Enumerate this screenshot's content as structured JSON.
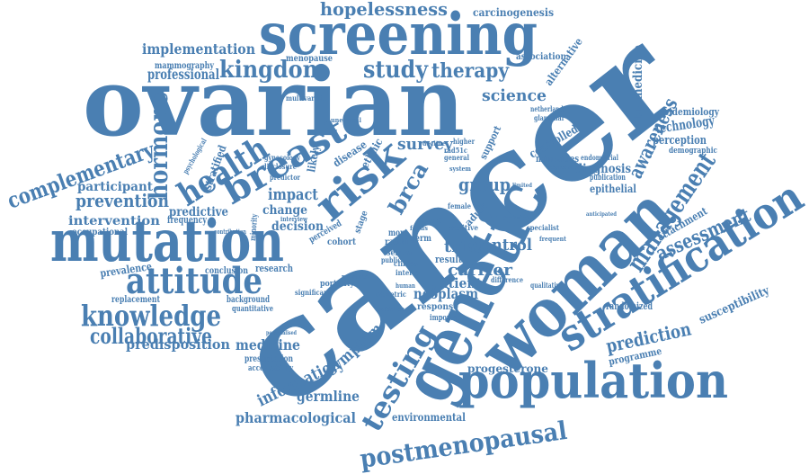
{
  "color": "#4a7fb2",
  "words": [
    {
      "name": "word-cancer",
      "text": "cancer"
    },
    {
      "name": "word-ovarian",
      "text": "ovarian"
    },
    {
      "name": "word-genetic",
      "text": "genetic"
    },
    {
      "name": "word-woman",
      "text": "woman"
    },
    {
      "name": "word-screening",
      "text": "screening"
    },
    {
      "name": "word-mutation",
      "text": "mutation"
    },
    {
      "name": "word-population",
      "text": "population"
    },
    {
      "name": "word-stratification",
      "text": "stratification"
    },
    {
      "name": "word-risk",
      "text": "risk"
    },
    {
      "name": "word-breast",
      "text": "breast"
    },
    {
      "name": "word-health",
      "text": "health"
    },
    {
      "name": "word-attitude",
      "text": "attitude"
    },
    {
      "name": "word-knowledge",
      "text": "knowledge"
    },
    {
      "name": "word-testing",
      "text": "testing"
    },
    {
      "name": "word-postmenopausal",
      "text": "postmenopausal"
    },
    {
      "name": "word-management",
      "text": "management"
    },
    {
      "name": "word-hormone",
      "text": "hormone"
    },
    {
      "name": "word-complementary",
      "text": "complementary"
    },
    {
      "name": "word-kingdom",
      "text": "kingdom"
    },
    {
      "name": "word-study",
      "text": "study"
    },
    {
      "name": "word-therapy",
      "text": "therapy"
    },
    {
      "name": "word-hopelessness",
      "text": "hopelessness"
    },
    {
      "name": "word-collaborative",
      "text": "collaborative"
    },
    {
      "name": "word-assessment",
      "text": "assessment"
    },
    {
      "name": "word-awareness",
      "text": "awareness"
    },
    {
      "name": "word-prediction",
      "text": "prediction"
    },
    {
      "name": "word-prevention",
      "text": "prevention"
    },
    {
      "name": "word-implementation",
      "text": "implementation"
    },
    {
      "name": "word-professional",
      "text": "professional"
    },
    {
      "name": "word-science",
      "text": "science"
    },
    {
      "name": "word-survey",
      "text": "survey"
    },
    {
      "name": "word-brca",
      "text": "brca"
    },
    {
      "name": "word-group",
      "text": "group"
    },
    {
      "name": "word-impact",
      "text": "impact"
    },
    {
      "name": "word-carrier",
      "text": "carrier"
    },
    {
      "name": "word-trial",
      "text": "trial"
    },
    {
      "name": "word-control",
      "text": "control"
    },
    {
      "name": "word-information",
      "text": "information"
    },
    {
      "name": "word-symptom",
      "text": "symptom"
    },
    {
      "name": "word-germline",
      "text": "germline"
    },
    {
      "name": "word-pharmacological",
      "text": "pharmacological"
    },
    {
      "name": "word-medicine",
      "text": "medicine"
    },
    {
      "name": "word-predisposition",
      "text": "predisposition"
    },
    {
      "name": "word-neoplasm",
      "text": "neoplasm"
    },
    {
      "name": "word-patient",
      "text": "patient"
    },
    {
      "name": "word-intervention",
      "text": "intervention"
    },
    {
      "name": "word-predictive",
      "text": "predictive"
    },
    {
      "name": "word-participant",
      "text": "participant"
    },
    {
      "name": "word-change",
      "text": "change"
    },
    {
      "name": "word-decision",
      "text": "decision"
    },
    {
      "name": "word-progesterone",
      "text": "progesterone"
    },
    {
      "name": "word-environmental",
      "text": "environmental"
    },
    {
      "name": "word-technology",
      "text": "technology"
    },
    {
      "name": "word-perception",
      "text": "perception"
    },
    {
      "name": "word-epidemiology",
      "text": "epidemiology"
    },
    {
      "name": "word-biomedicine",
      "text": "biomedicine"
    },
    {
      "name": "word-diagnosis",
      "text": "diagnosis"
    },
    {
      "name": "word-epithelial",
      "text": "epithelial"
    },
    {
      "name": "word-susceptibility",
      "text": "susceptibility"
    },
    {
      "name": "word-programme",
      "text": "programme"
    },
    {
      "name": "word-attachment",
      "text": "attachment"
    },
    {
      "name": "word-randomized",
      "text": "randomized"
    },
    {
      "name": "word-controlled",
      "text": "controlled"
    },
    {
      "name": "word-minorities",
      "text": "minorities"
    },
    {
      "name": "word-carcinogenesis",
      "text": "carcinogenesis"
    },
    {
      "name": "word-alternative",
      "text": "alternative"
    },
    {
      "name": "word-association",
      "text": "association"
    },
    {
      "name": "word-menopause",
      "text": "menopause"
    },
    {
      "name": "word-mammography",
      "text": "mammography"
    },
    {
      "name": "word-frequency",
      "text": "frequency"
    },
    {
      "name": "word-prevalence",
      "text": "prevalence"
    },
    {
      "name": "word-occupational",
      "text": "occupational"
    },
    {
      "name": "word-replacement",
      "text": "replacement"
    },
    {
      "name": "word-research",
      "text": "research"
    },
    {
      "name": "word-conclusion",
      "text": "conclusion"
    },
    {
      "name": "word-background",
      "text": "background"
    },
    {
      "name": "word-quantitative",
      "text": "quantitative"
    },
    {
      "name": "word-presentation",
      "text": "presentation"
    },
    {
      "name": "word-acceptability",
      "text": "acceptability"
    },
    {
      "name": "word-stratified",
      "text": "stratified"
    },
    {
      "name": "word-psychological",
      "text": "psychological"
    },
    {
      "name": "word-ethnic",
      "text": "ethnic"
    },
    {
      "name": "word-disease",
      "text": "disease"
    },
    {
      "name": "word-likely",
      "text": "likely"
    },
    {
      "name": "word-result",
      "text": "result"
    },
    {
      "name": "word-response",
      "text": "response"
    },
    {
      "name": "word-important",
      "text": "important"
    },
    {
      "name": "word-portality",
      "text": "portality"
    },
    {
      "name": "word-cohort",
      "text": "cohort"
    },
    {
      "name": "word-ranki",
      "text": "ranki"
    },
    {
      "name": "word-serum",
      "text": "serum"
    },
    {
      "name": "word-germ",
      "text": "germ"
    },
    {
      "name": "word-care",
      "text": "care"
    },
    {
      "name": "word-more",
      "text": "more"
    },
    {
      "name": "word-adult",
      "text": "adult"
    },
    {
      "name": "word-support",
      "text": "support"
    },
    {
      "name": "word-demographic",
      "text": "demographic"
    },
    {
      "name": "word-publication",
      "text": "publication"
    },
    {
      "name": "word-significant",
      "text": "significant"
    },
    {
      "name": "word-minority",
      "text": "minority"
    },
    {
      "name": "word-predictor",
      "text": "predictor"
    },
    {
      "name": "word-gynecology",
      "text": "gynecology"
    },
    {
      "name": "word-disclosure",
      "text": "disclosure"
    },
    {
      "name": "word-difference",
      "text": "difference"
    },
    {
      "name": "word-positive",
      "text": "positive"
    },
    {
      "name": "word-obstetric",
      "text": "obstetric"
    },
    {
      "name": "word-clinical",
      "text": "clinical"
    },
    {
      "name": "word-interval",
      "text": "interval"
    },
    {
      "name": "word-public",
      "text": "public"
    },
    {
      "name": "word-multivariate",
      "text": "multivariate"
    },
    {
      "name": "word-higher",
      "text": "higher"
    },
    {
      "name": "word-general",
      "text": "general"
    },
    {
      "name": "word-netherlands",
      "text": "netherlands"
    },
    {
      "name": "word-glandular",
      "text": "glandular"
    },
    {
      "name": "word-specialist",
      "text": "specialist"
    },
    {
      "name": "word-endometrial",
      "text": "endometrial"
    },
    {
      "name": "word-qualitative",
      "text": "qualitative"
    },
    {
      "name": "word-contribution",
      "text": "contribution"
    },
    {
      "name": "word-interview",
      "text": "interview"
    },
    {
      "name": "word-perceived",
      "text": "perceived"
    },
    {
      "name": "word-stage",
      "text": "stage"
    },
    {
      "name": "word-personalised",
      "text": "personalised"
    },
    {
      "name": "word-validation",
      "text": "validation"
    },
    {
      "name": "word-method",
      "text": "method"
    },
    {
      "name": "word-focus",
      "text": "focus"
    },
    {
      "name": "word-female",
      "text": "female"
    },
    {
      "name": "word-system",
      "text": "system"
    },
    {
      "name": "word-frequent",
      "text": "frequent"
    },
    {
      "name": "word-regression",
      "text": "regression"
    },
    {
      "name": "word-rad51c",
      "text": "rad51c"
    },
    {
      "name": "word-decline",
      "text": "decline"
    },
    {
      "name": "word-unethical",
      "text": "unethical"
    },
    {
      "name": "word-prostate",
      "text": "prostate"
    },
    {
      "name": "word-human",
      "text": "human"
    },
    {
      "name": "word-anticipated",
      "text": "anticipated"
    },
    {
      "name": "word-evaluable",
      "text": "evaluable"
    },
    {
      "name": "word-limited",
      "text": "limited"
    }
  ]
}
